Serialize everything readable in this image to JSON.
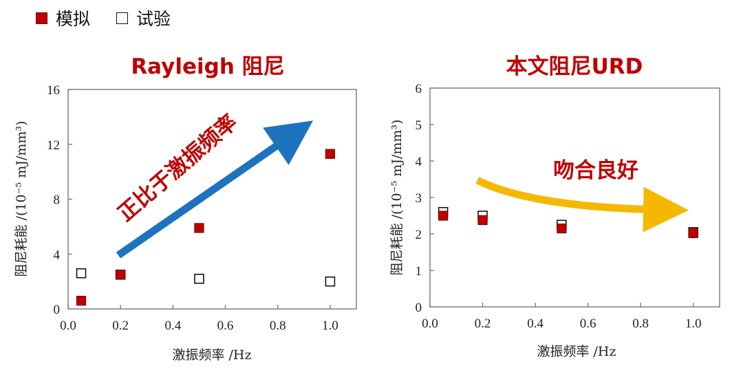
{
  "legend": {
    "items": [
      {
        "label": "模拟",
        "fill": "#c00000",
        "stroke": "#7a0000",
        "filled": true
      },
      {
        "label": "试验",
        "fill": "#ffffff",
        "stroke": "#111111",
        "filled": false
      }
    ]
  },
  "chart_data": [
    {
      "type": "scatter",
      "title": "Rayleigh 阻尼",
      "title_color": "#c00000",
      "xlabel": "激振频率 /Hz",
      "ylabel": "阻尼耗能 /(10⁻⁵ mJ/mm³)",
      "xlim": [
        0.0,
        1.1
      ],
      "ylim": [
        0,
        16
      ],
      "xticks": [
        0.0,
        0.2,
        0.4,
        0.6,
        0.8,
        1.0
      ],
      "xtick_labels": [
        "0.0",
        "0.2",
        "0.4",
        "0.6",
        "0.8",
        "1.0"
      ],
      "yticks": [
        0,
        4,
        8,
        12,
        16
      ],
      "ytick_labels": [
        "0",
        "4",
        "8",
        "12",
        "16"
      ],
      "grid": false,
      "series": [
        {
          "name": "模拟",
          "x": [
            0.05,
            0.2,
            0.5,
            1.0
          ],
          "y": [
            0.6,
            2.5,
            5.9,
            11.3
          ]
        },
        {
          "name": "试验",
          "x": [
            0.05,
            0.2,
            0.5,
            1.0
          ],
          "y": [
            2.6,
            2.5,
            2.2,
            2.0
          ]
        }
      ],
      "annotation": {
        "text": "正比于激振频率",
        "color": "#c00000",
        "arrow_color": "#1e73be",
        "style": "straight-arrow"
      }
    },
    {
      "type": "scatter",
      "title": "本文阻尼URD",
      "title_color": "#c00000",
      "xlabel": "激振频率 /Hz",
      "ylabel": "阻尼耗能 /(10⁻⁵ mJ/mm³)",
      "xlim": [
        0.0,
        1.1
      ],
      "ylim": [
        0,
        6
      ],
      "xticks": [
        0.0,
        0.2,
        0.4,
        0.6,
        0.8,
        1.0
      ],
      "xtick_labels": [
        "0.0",
        "0.2",
        "0.4",
        "0.6",
        "0.8",
        "1.0"
      ],
      "yticks": [
        0,
        1,
        2,
        3,
        4,
        5,
        6
      ],
      "ytick_labels": [
        "0",
        "1",
        "2",
        "3",
        "4",
        "5",
        "6"
      ],
      "grid": false,
      "series": [
        {
          "name": "模拟",
          "x": [
            0.05,
            0.2,
            0.5,
            1.0
          ],
          "y": [
            2.5,
            2.38,
            2.15,
            2.02
          ]
        },
        {
          "name": "试验",
          "x": [
            0.05,
            0.2,
            0.5,
            1.0
          ],
          "y": [
            2.6,
            2.5,
            2.25,
            2.05
          ]
        }
      ],
      "annotation": {
        "text": "吻合良好",
        "color": "#c00000",
        "arrow_color": "#f5b800",
        "style": "curved-arrow"
      }
    }
  ]
}
